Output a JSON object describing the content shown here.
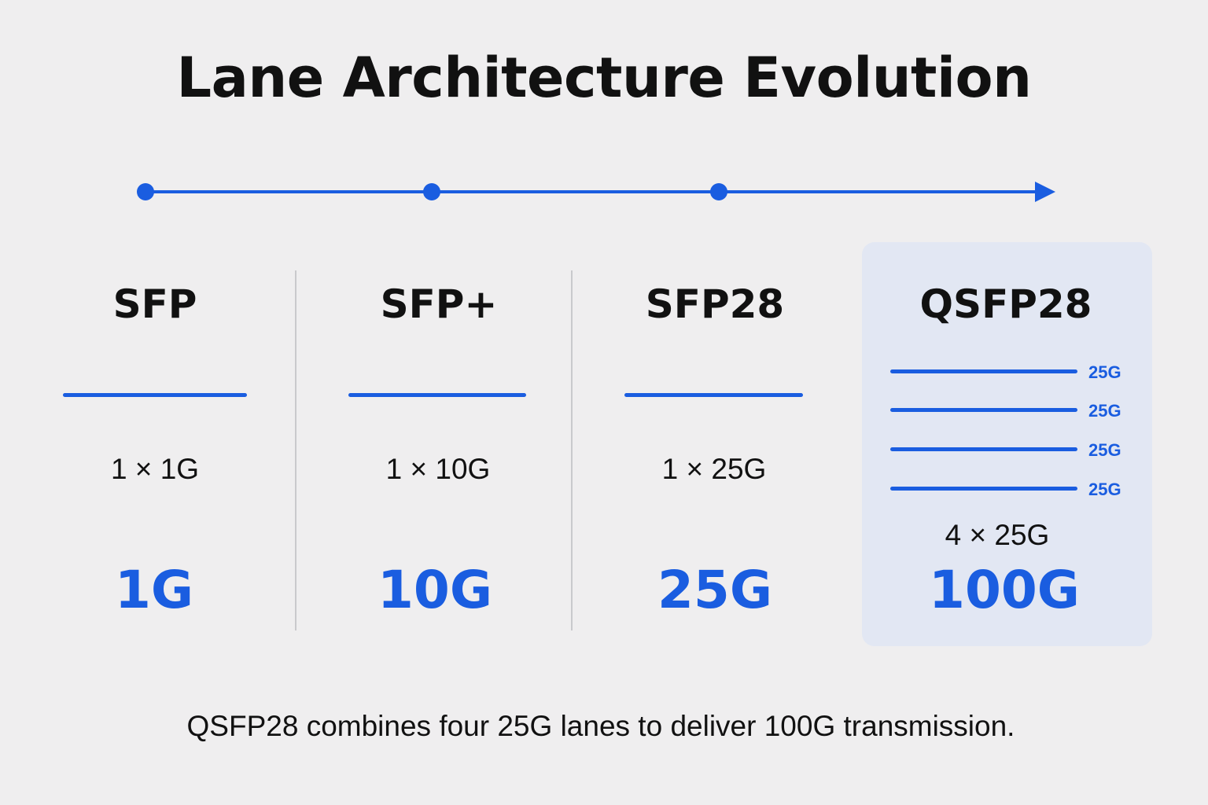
{
  "title": "Lane Architecture Evolution",
  "accent_color": "#1a5de0",
  "panel_color": "#e2e7f3",
  "timeline": {
    "stops": 3,
    "direction": "left-to-right-arrow"
  },
  "generations": [
    {
      "name": "SFP",
      "lanes": [
        "1G"
      ],
      "lane_config": "1 × 1G",
      "total": "1G",
      "highlighted": false
    },
    {
      "name": "SFP+",
      "lanes": [
        "10G"
      ],
      "lane_config": "1 × 10G",
      "total": "10G",
      "highlighted": false
    },
    {
      "name": "SFP28",
      "lanes": [
        "25G"
      ],
      "lane_config": "1 × 25G",
      "total": "25G",
      "highlighted": false
    },
    {
      "name": "QSFP28",
      "lanes": [
        "25G",
        "25G",
        "25G",
        "25G"
      ],
      "lane_labels": [
        "25G",
        "25G",
        "25G",
        "25G"
      ],
      "lane_config": "4 × 25G",
      "total": "100G",
      "highlighted": true
    }
  ],
  "caption": "QSFP28 combines four 25G lanes to deliver 100G transmission."
}
